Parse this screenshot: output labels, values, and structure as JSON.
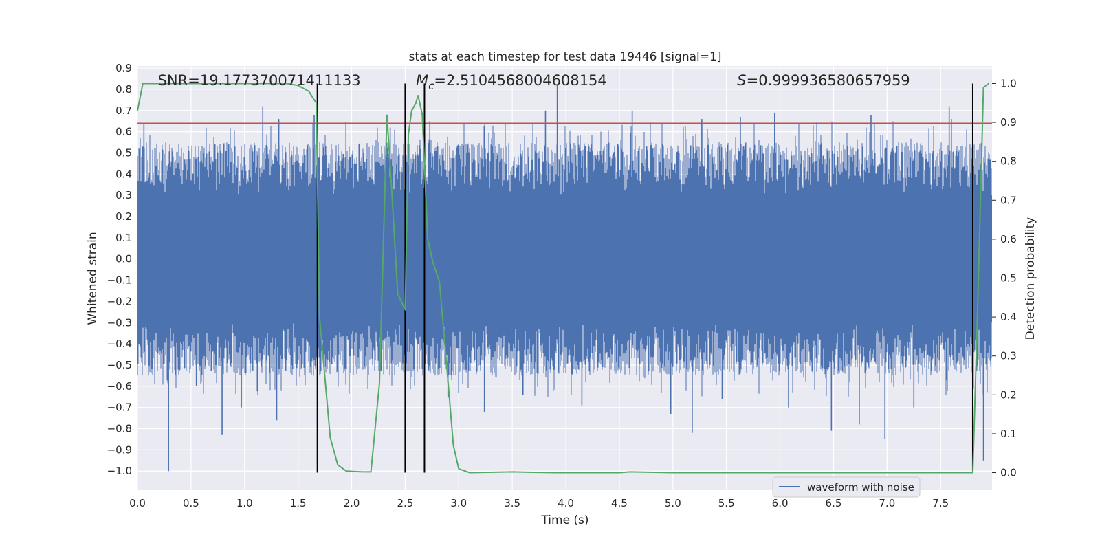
{
  "chart_data": {
    "type": "line",
    "title": "stats at each timestep for test data 19446 [signal=1]",
    "xlabel": "Time (s)",
    "ylabel": "Whitened strain",
    "y2label": "Detection probability",
    "xlim": [
      0.0,
      7.98
    ],
    "ylim": [
      -1.09,
      0.91
    ],
    "y2lim": [
      -0.045,
      1.045
    ],
    "xticks": [
      0.0,
      0.5,
      1.0,
      1.5,
      2.0,
      2.5,
      3.0,
      3.5,
      4.0,
      4.5,
      5.0,
      5.5,
      6.0,
      6.5,
      7.0,
      7.5
    ],
    "xtick_labels": [
      "0.0",
      "0.5",
      "1.0",
      "1.5",
      "2.0",
      "2.5",
      "3.0",
      "3.5",
      "4.0",
      "4.5",
      "5.0",
      "5.5",
      "6.0",
      "6.5",
      "7.0",
      "7.5"
    ],
    "yticks": [
      0.9,
      0.8,
      0.7,
      0.6,
      0.5,
      0.4,
      0.3,
      0.2,
      0.1,
      0.0,
      -0.1,
      -0.2,
      -0.3,
      -0.4,
      -0.5,
      -0.6,
      -0.7,
      -0.8,
      -0.9,
      -1.0
    ],
    "ytick_labels": [
      "0.9",
      "0.8",
      "0.7",
      "0.6",
      "0.5",
      "0.4",
      "0.3",
      "0.2",
      "0.1",
      "0.0",
      "−0.1",
      "−0.2",
      "−0.3",
      "−0.4",
      "−0.5",
      "−0.6",
      "−0.7",
      "−0.8",
      "−0.9",
      "−1.0"
    ],
    "y2ticks": [
      1.0,
      0.9,
      0.8,
      0.7,
      0.6,
      0.5,
      0.4,
      0.3,
      0.2,
      0.1,
      0.0
    ],
    "y2tick_labels": [
      "1.0",
      "0.9",
      "0.8",
      "0.7",
      "0.6",
      "0.5",
      "0.4",
      "0.3",
      "0.2",
      "0.1",
      "0.0"
    ],
    "grid": true,
    "legend": {
      "label": "waveform with noise",
      "location": "lower-right"
    },
    "series": [
      {
        "name": "waveform with noise",
        "axis": "left",
        "color": "#4c72b0",
        "style": "dense-noise",
        "core_range": [
          -0.3,
          0.3
        ],
        "typical_envelope": [
          -0.55,
          0.55
        ],
        "spikes": [
          {
            "x": 0.06,
            "y": 0.64
          },
          {
            "x": 0.29,
            "y": -1.0
          },
          {
            "x": 0.55,
            "y": -0.6
          },
          {
            "x": 0.79,
            "y": -0.83
          },
          {
            "x": 0.97,
            "y": -0.7
          },
          {
            "x": 1.17,
            "y": 0.72
          },
          {
            "x": 1.3,
            "y": -0.76
          },
          {
            "x": 1.32,
            "y": 0.66
          },
          {
            "x": 1.65,
            "y": 0.68
          },
          {
            "x": 2.36,
            "y": 0.62
          },
          {
            "x": 2.73,
            "y": 0.65
          },
          {
            "x": 2.9,
            "y": -0.65
          },
          {
            "x": 3.24,
            "y": -0.72
          },
          {
            "x": 3.6,
            "y": -0.64
          },
          {
            "x": 3.81,
            "y": 0.7
          },
          {
            "x": 3.92,
            "y": 0.82
          },
          {
            "x": 4.15,
            "y": -0.69
          },
          {
            "x": 4.62,
            "y": 0.7
          },
          {
            "x": 4.98,
            "y": -0.73
          },
          {
            "x": 5.18,
            "y": -0.82
          },
          {
            "x": 5.27,
            "y": 0.66
          },
          {
            "x": 5.46,
            "y": -0.66
          },
          {
            "x": 5.63,
            "y": 0.67
          },
          {
            "x": 5.95,
            "y": 0.69
          },
          {
            "x": 6.08,
            "y": -0.7
          },
          {
            "x": 6.48,
            "y": -0.81
          },
          {
            "x": 6.74,
            "y": -0.78
          },
          {
            "x": 6.85,
            "y": 0.68
          },
          {
            "x": 6.98,
            "y": -0.85
          },
          {
            "x": 7.25,
            "y": -0.7
          },
          {
            "x": 7.58,
            "y": 0.72
          },
          {
            "x": 7.6,
            "y": 0.66
          },
          {
            "x": 7.9,
            "y": -0.95
          }
        ]
      },
      {
        "name": "detection probability",
        "axis": "right",
        "color": "#55a868",
        "x": [
          0.0,
          0.05,
          0.1,
          1.0,
          1.4,
          1.5,
          1.6,
          1.67,
          1.7,
          1.8,
          1.87,
          1.95,
          2.1,
          2.18,
          2.26,
          2.33,
          2.38,
          2.43,
          2.48,
          2.5,
          2.53,
          2.56,
          2.6,
          2.62,
          2.66,
          2.71,
          2.76,
          2.82,
          2.88,
          2.95,
          3.0,
          3.1,
          3.5,
          3.9,
          4.0,
          4.5,
          4.6,
          5.0,
          6.0,
          7.0,
          7.77,
          7.8,
          7.84,
          7.9,
          7.95
        ],
        "y": [
          0.93,
          1.0,
          1.0,
          1.0,
          1.0,
          0.995,
          0.98,
          0.95,
          0.4,
          0.09,
          0.02,
          0.004,
          0.002,
          0.002,
          0.23,
          0.92,
          0.7,
          0.46,
          0.43,
          0.42,
          0.87,
          0.93,
          0.95,
          0.97,
          0.92,
          0.6,
          0.54,
          0.49,
          0.3,
          0.07,
          0.01,
          0.0,
          0.002,
          0.0,
          0.0,
          0.0,
          0.002,
          0.0,
          0.0,
          0.0,
          0.0,
          0.0,
          0.37,
          0.99,
          1.0
        ]
      }
    ],
    "reference_lines": [
      {
        "orientation": "horizontal",
        "axis": "left",
        "y": 0.64,
        "color": "#c44e52"
      },
      {
        "orientation": "vertical",
        "x": 1.68,
        "color": "#000000"
      },
      {
        "orientation": "vertical",
        "x": 2.5,
        "color": "#000000"
      },
      {
        "orientation": "vertical",
        "x": 2.68,
        "color": "#000000"
      },
      {
        "orientation": "vertical",
        "x": 7.8,
        "color": "#000000"
      }
    ],
    "annotations": [
      {
        "name": "snr",
        "x": 0.19,
        "label": "SNR=",
        "value": "19.177370071411133"
      },
      {
        "name": "chirp-mass",
        "x": 2.6,
        "symbol": "M",
        "subscript": "c",
        "eq": "=",
        "value": "2.5104568004608154"
      },
      {
        "name": "significance",
        "x": 5.6,
        "symbol": "S",
        "eq": "=",
        "value": "0.999936580657959"
      }
    ]
  }
}
